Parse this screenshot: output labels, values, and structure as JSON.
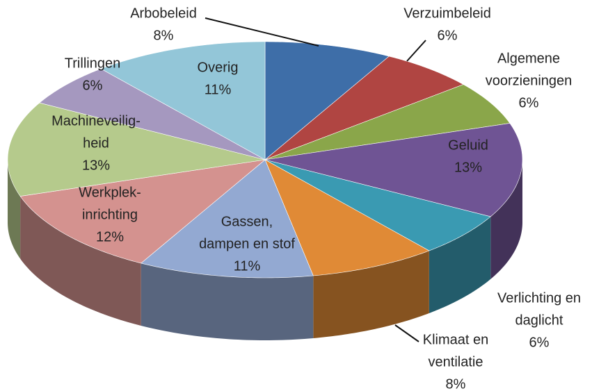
{
  "chart_data": {
    "type": "pie3d",
    "categories": [
      [
        "Arbobeleid"
      ],
      [
        "Verzuimbeleid"
      ],
      [
        "Algemene",
        "voorzieningen"
      ],
      [
        "Geluid"
      ],
      [
        "Verlichting en",
        "daglicht"
      ],
      [
        "Klimaat en",
        "ventilatie"
      ],
      [
        "Gassen,",
        "dampen en stof"
      ],
      [
        "Werkplek-",
        "inrichting"
      ],
      [
        "Machineveilig-",
        "heid"
      ],
      [
        "Trillingen"
      ],
      [
        "Overig"
      ]
    ],
    "values": [
      8,
      6,
      6,
      13,
      6,
      8,
      11,
      12,
      13,
      6,
      11
    ],
    "value_labels": [
      "8%",
      "6%",
      "6%",
      "13%",
      "6%",
      "8%",
      "11%",
      "12%",
      "13%",
      "6%",
      "11%"
    ],
    "colors": [
      "#3e6ea8",
      "#b04542",
      "#8aa64a",
      "#6f5494",
      "#3a9ab2",
      "#e08a36",
      "#93a9d2",
      "#d4928f",
      "#b5ca8c",
      "#a598bf",
      "#93c6d8"
    ]
  }
}
